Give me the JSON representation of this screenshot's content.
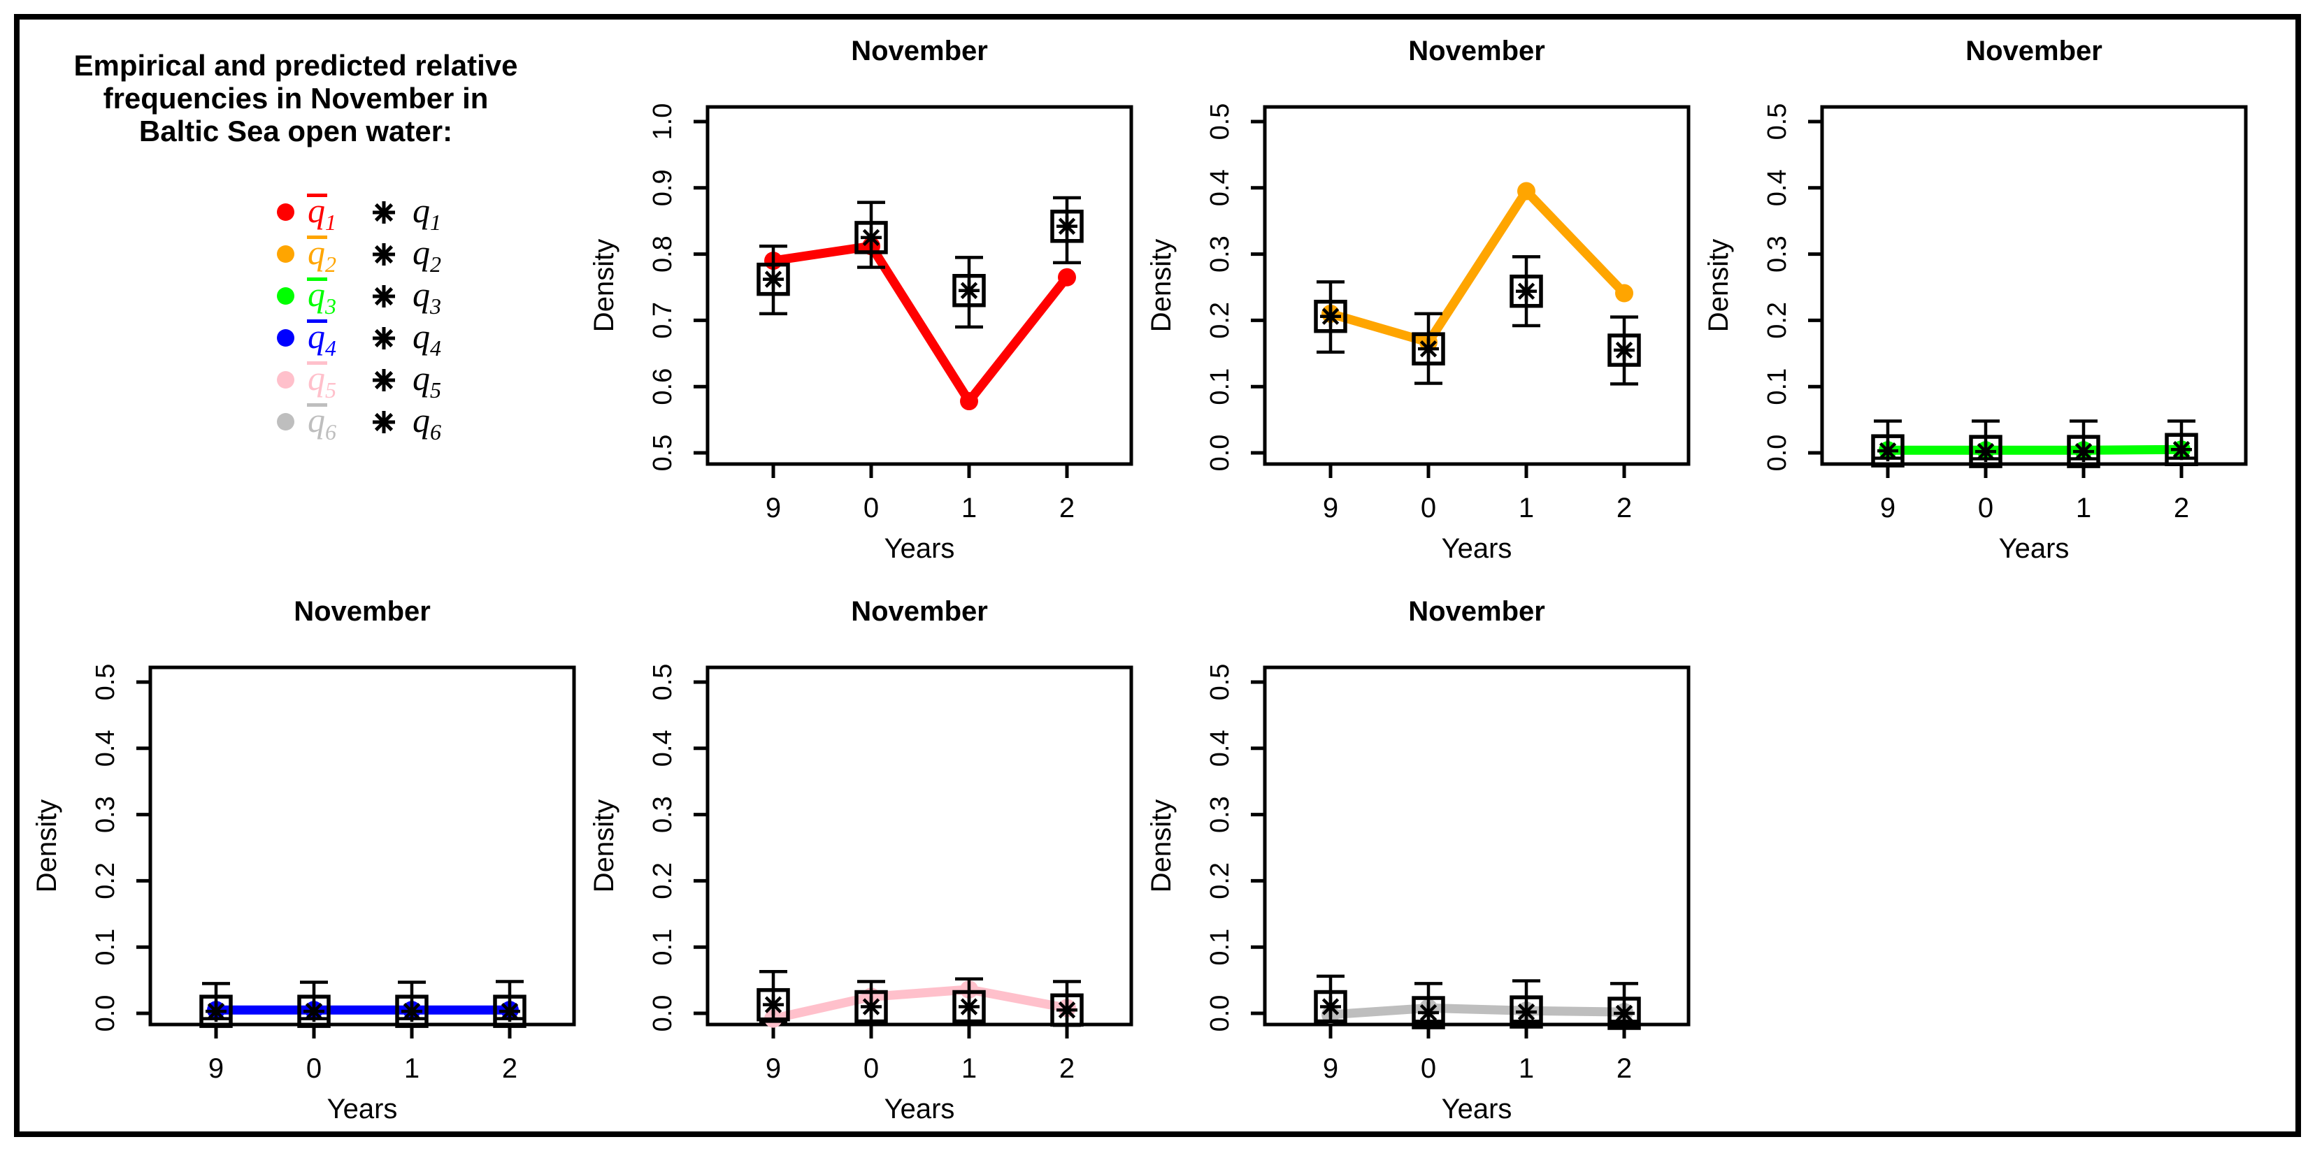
{
  "figure": {
    "background": "#ffffff",
    "border_color": "#000000"
  },
  "legend": {
    "title_lines": [
      "Empirical and predicted relative",
      "frequencies in November in",
      "Baltic Sea open water:"
    ],
    "entries": [
      {
        "pred_symbol": "q",
        "pred_subscript": "1",
        "obs_symbol": "q",
        "obs_subscript": "1",
        "color": "#ff0000"
      },
      {
        "pred_symbol": "q",
        "pred_subscript": "2",
        "obs_symbol": "q",
        "obs_subscript": "2",
        "color": "#ffa500"
      },
      {
        "pred_symbol": "q",
        "pred_subscript": "3",
        "obs_symbol": "q",
        "obs_subscript": "3",
        "color": "#00ff00"
      },
      {
        "pred_symbol": "q",
        "pred_subscript": "4",
        "obs_symbol": "q",
        "obs_subscript": "4",
        "color": "#0000ff"
      },
      {
        "pred_symbol": "q",
        "pred_subscript": "5",
        "obs_symbol": "q",
        "obs_subscript": "5",
        "color": "#ffc0cb"
      },
      {
        "pred_symbol": "q",
        "pred_subscript": "6",
        "obs_symbol": "q",
        "obs_subscript": "6",
        "color": "#bebebe"
      }
    ]
  },
  "chart_data": [
    {
      "id": "q1",
      "type": "line",
      "title": "November",
      "xlabel": "Years",
      "ylabel": "Density",
      "categories": [
        "9",
        "0",
        "1",
        "2"
      ],
      "ylim": [
        0.5,
        1.0
      ],
      "yticks": [
        0.5,
        0.6,
        0.7,
        0.8,
        0.9,
        1.0
      ],
      "series": [
        {
          "name": "predicted q̄1",
          "role": "line+point",
          "color": "#ff0000",
          "values": [
            0.79,
            0.812,
            0.578,
            0.765
          ]
        },
        {
          "name": "empirical q1",
          "role": "point+errorbar",
          "color": "#000000",
          "marker": "square-asterisk",
          "values": [
            0.762,
            0.825,
            0.745,
            0.842
          ],
          "err_lo": [
            0.71,
            0.78,
            0.69,
            0.787
          ],
          "err_hi": [
            0.812,
            0.878,
            0.795,
            0.885
          ]
        }
      ]
    },
    {
      "id": "q2",
      "type": "line",
      "title": "November",
      "xlabel": "Years",
      "ylabel": "Density",
      "categories": [
        "9",
        "0",
        "1",
        "2"
      ],
      "ylim": [
        0.0,
        0.5
      ],
      "yticks": [
        0.0,
        0.1,
        0.2,
        0.3,
        0.4,
        0.5
      ],
      "series": [
        {
          "name": "predicted q̄2",
          "role": "line+point",
          "color": "#ffa500",
          "values": [
            0.21,
            0.167,
            0.395,
            0.241
          ]
        },
        {
          "name": "empirical q2",
          "role": "point+errorbar",
          "color": "#000000",
          "marker": "square-asterisk",
          "values": [
            0.206,
            0.157,
            0.244,
            0.155
          ],
          "err_lo": [
            0.152,
            0.105,
            0.192,
            0.104
          ],
          "err_hi": [
            0.258,
            0.21,
            0.296,
            0.205
          ]
        }
      ]
    },
    {
      "id": "q3",
      "type": "line",
      "title": "November",
      "xlabel": "Years",
      "ylabel": "Density",
      "categories": [
        "9",
        "0",
        "1",
        "2"
      ],
      "ylim": [
        0.0,
        0.5
      ],
      "yticks": [
        0.0,
        0.1,
        0.2,
        0.3,
        0.4,
        0.5
      ],
      "series": [
        {
          "name": "predicted q̄3",
          "role": "line+point",
          "color": "#00ff00",
          "values": [
            0.004,
            0.004,
            0.004,
            0.005
          ]
        },
        {
          "name": "empirical q3",
          "role": "point+errorbar",
          "color": "#000000",
          "marker": "square-asterisk",
          "values": [
            0.003,
            0.002,
            0.002,
            0.005
          ],
          "err_lo": [
            -0.008,
            -0.009,
            -0.009,
            -0.008
          ],
          "err_hi": [
            0.048,
            0.048,
            0.048,
            0.048
          ]
        }
      ]
    },
    {
      "id": "q4",
      "type": "line",
      "title": "November",
      "xlabel": "Years",
      "ylabel": "Density",
      "categories": [
        "9",
        "0",
        "1",
        "2"
      ],
      "ylim": [
        0.0,
        0.5
      ],
      "yticks": [
        0.0,
        0.1,
        0.2,
        0.3,
        0.4,
        0.5
      ],
      "series": [
        {
          "name": "predicted q̄4",
          "role": "line+point",
          "color": "#0000ff",
          "values": [
            0.005,
            0.005,
            0.005,
            0.005
          ]
        },
        {
          "name": "empirical q4",
          "role": "point+errorbar",
          "color": "#000000",
          "marker": "square-asterisk",
          "values": [
            0.003,
            0.003,
            0.003,
            0.003
          ],
          "err_lo": [
            -0.008,
            -0.008,
            -0.008,
            -0.008
          ],
          "err_hi": [
            0.045,
            0.047,
            0.047,
            0.048
          ]
        }
      ]
    },
    {
      "id": "q5",
      "type": "line",
      "title": "November",
      "xlabel": "Years",
      "ylabel": "Density",
      "categories": [
        "9",
        "0",
        "1",
        "2"
      ],
      "ylim": [
        0.0,
        0.5
      ],
      "yticks": [
        0.0,
        0.1,
        0.2,
        0.3,
        0.4,
        0.5
      ],
      "series": [
        {
          "name": "predicted q̄5",
          "role": "line+point",
          "color": "#ffc0cb",
          "values": [
            -0.008,
            0.025,
            0.036,
            0.008
          ]
        },
        {
          "name": "empirical q5",
          "role": "point+errorbar",
          "color": "#000000",
          "marker": "square-asterisk",
          "values": [
            0.013,
            0.01,
            0.01,
            0.005
          ],
          "err_lo": [
            -0.012,
            -0.015,
            -0.012,
            -0.018
          ],
          "err_hi": [
            0.063,
            0.048,
            0.052,
            0.048
          ]
        }
      ]
    },
    {
      "id": "q6",
      "type": "line",
      "title": "November",
      "xlabel": "Years",
      "ylabel": "Density",
      "categories": [
        "9",
        "0",
        "1",
        "2"
      ],
      "ylim": [
        0.0,
        0.5
      ],
      "yticks": [
        0.0,
        0.1,
        0.2,
        0.3,
        0.4,
        0.5
      ],
      "series": [
        {
          "name": "predicted q̄6",
          "role": "line+point",
          "color": "#bebebe",
          "values": [
            -0.002,
            0.008,
            0.004,
            0.002
          ]
        },
        {
          "name": "empirical q6",
          "role": "point+errorbar",
          "color": "#000000",
          "marker": "square-asterisk",
          "values": [
            0.01,
            0.001,
            0.002,
            0.0
          ],
          "err_lo": [
            -0.012,
            -0.012,
            -0.012,
            -0.012
          ],
          "err_hi": [
            0.056,
            0.045,
            0.049,
            0.045
          ]
        }
      ]
    }
  ]
}
